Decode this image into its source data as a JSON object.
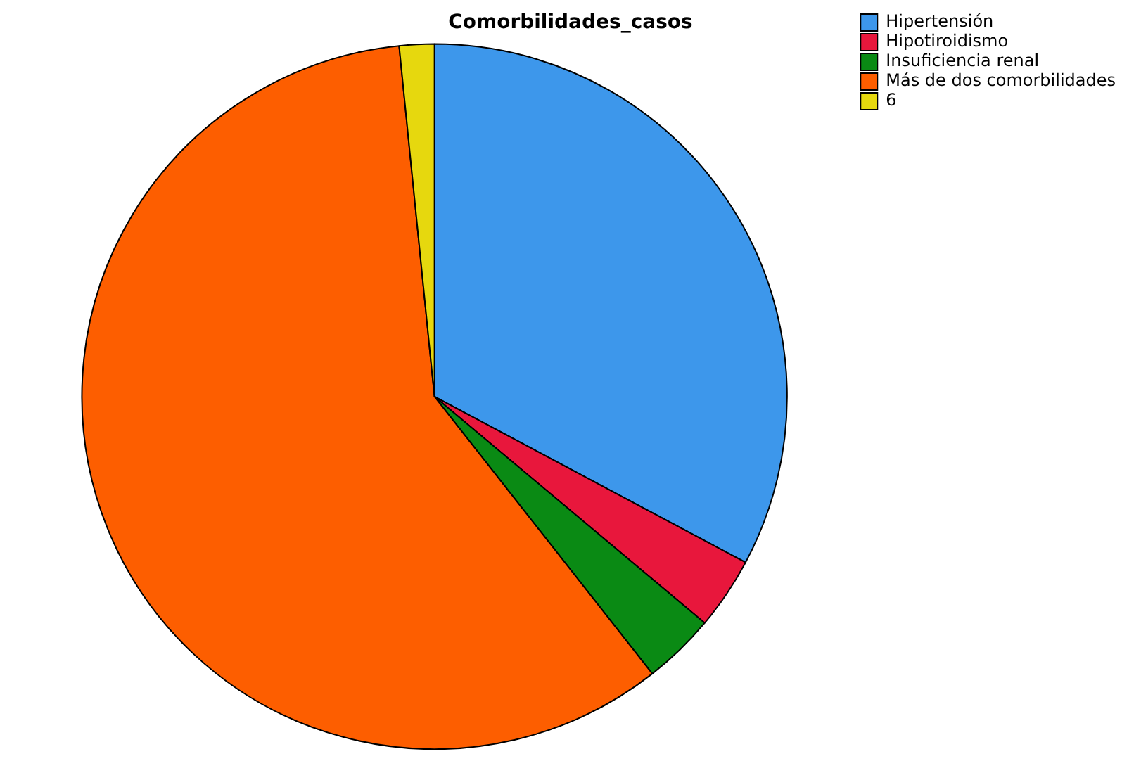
{
  "chart_data": {
    "type": "pie",
    "title": "Comorbilidades_casos",
    "categories": [
      "Hipertensión",
      "Hipotiroidismo",
      "Insuficiencia renal",
      "Más de dos comorbilidades",
      "6"
    ],
    "values": [
      32.8,
      3.3,
      3.3,
      59.0,
      1.6
    ],
    "colors": [
      "#3d97eb",
      "#e8173c",
      "#0a8a14",
      "#fd5e00",
      "#e6d80e"
    ],
    "legend": "top right"
  }
}
